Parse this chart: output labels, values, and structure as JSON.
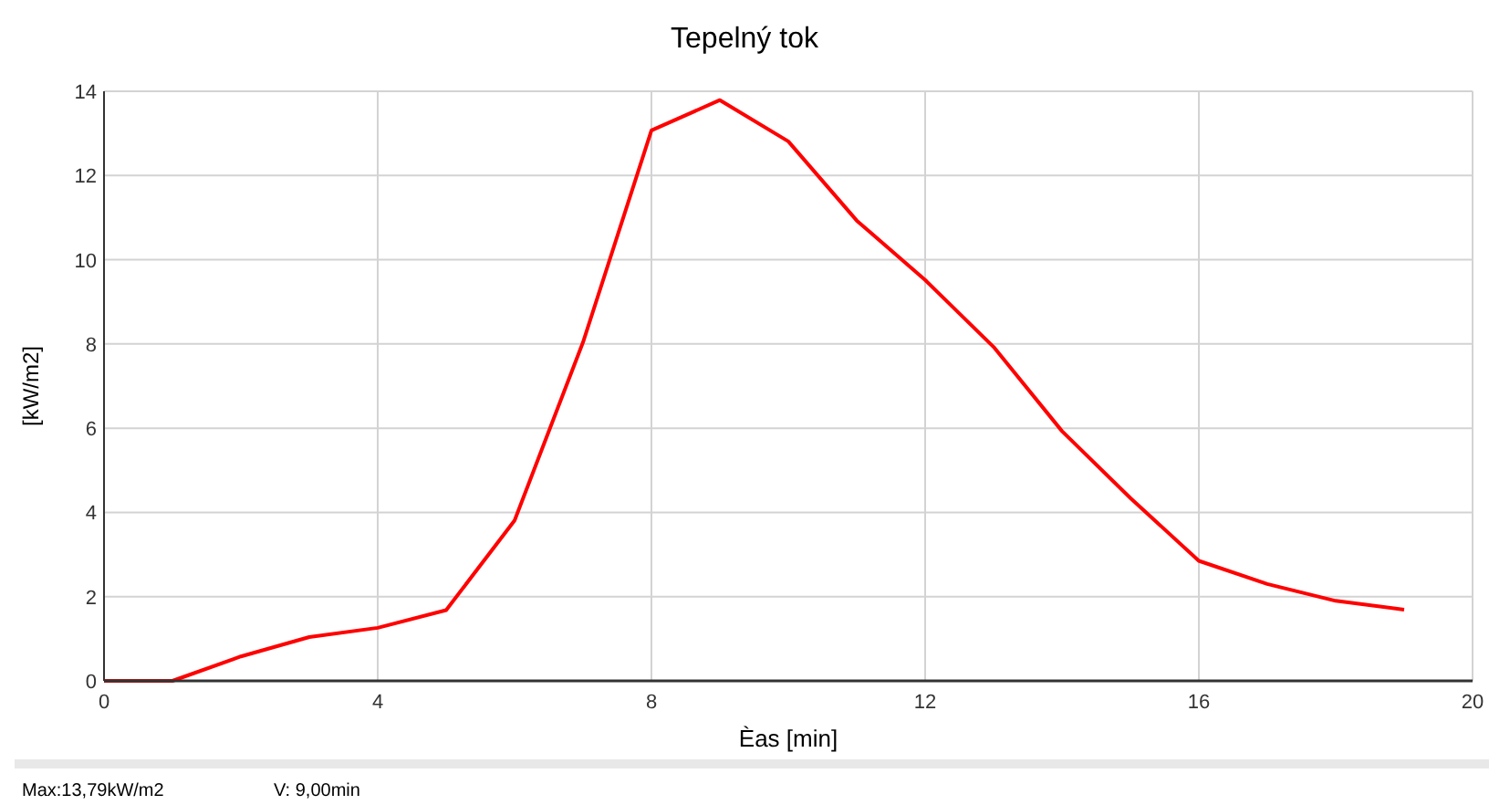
{
  "chart_data": {
    "type": "line",
    "title": "Tepelný tok",
    "xlabel": "Èas [min]",
    "ylabel": "[kW/m2]",
    "x": [
      0,
      1,
      2,
      3,
      4,
      5,
      6,
      7,
      8,
      9,
      10,
      11,
      12,
      13,
      14,
      15,
      16,
      17,
      18,
      19
    ],
    "series": [
      {
        "color": "#ff0000",
        "values": [
          0,
          0,
          0.58,
          1.04,
          1.26,
          1.68,
          3.81,
          8.04,
          13.07,
          13.79,
          12.81,
          10.93,
          9.52,
          7.93,
          5.93,
          4.34,
          2.85,
          2.3,
          1.9,
          1.69
        ]
      }
    ],
    "xlim": [
      0,
      20
    ],
    "xticks": [
      0,
      4,
      8,
      12,
      16,
      20
    ],
    "ylim": [
      0,
      14
    ],
    "yticks": [
      0,
      2,
      4,
      6,
      8,
      10,
      12,
      14
    ],
    "grid": true,
    "marker": "none",
    "line_style": "solid",
    "annotations": [
      "Max:13,79kW/m2",
      "V: 9,00min"
    ]
  }
}
